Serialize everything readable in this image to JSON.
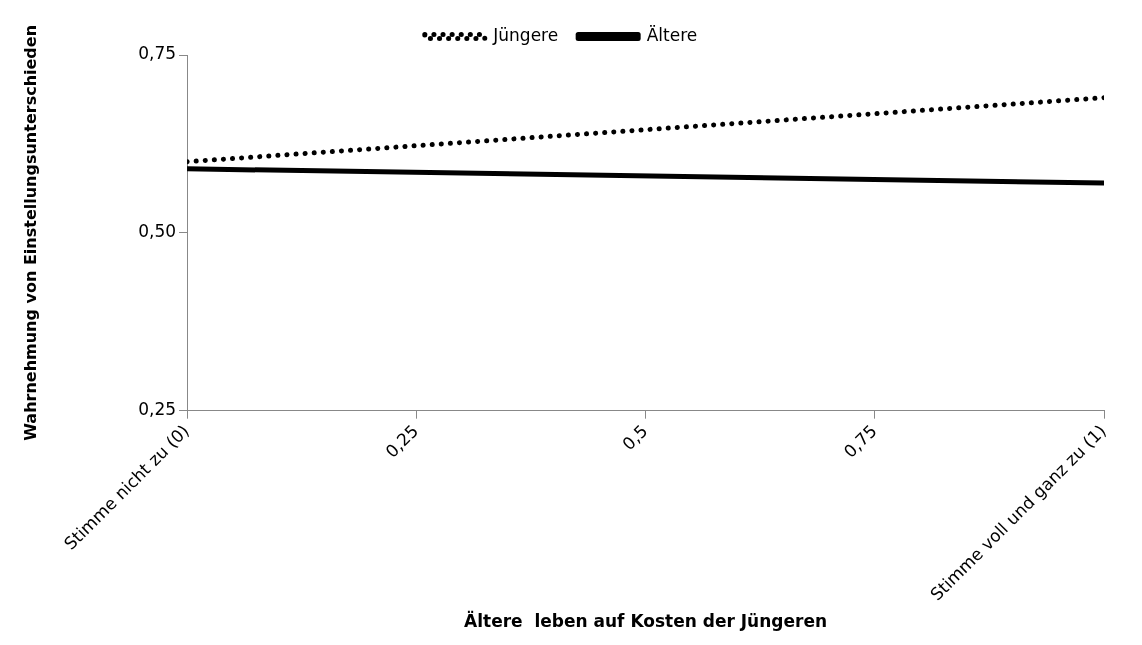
{
  "chart_data": {
    "type": "line",
    "xlabel": "Ältere  leben auf Kosten der Jüngeren",
    "ylabel": "Wahrnehmung von Einstellungsunterschieden",
    "x": [
      0,
      1
    ],
    "series": [
      {
        "name": "Jüngere",
        "color": "#000000",
        "values": [
          0.6,
          0.69
        ],
        "line_style": "dotted"
      },
      {
        "name": "Ältere",
        "color": "#000000",
        "values": [
          0.59,
          0.57
        ],
        "line_style": "solid"
      }
    ],
    "xlim": [
      0,
      1
    ],
    "xticks": [
      {
        "value": 0,
        "label": "Stimme nicht zu (0)"
      },
      {
        "value": 0.25,
        "label": "0,25"
      },
      {
        "value": 0.5,
        "label": "0,5"
      },
      {
        "value": 0.75,
        "label": "0,75"
      },
      {
        "value": 1,
        "label": "Stimme voll und ganz zu (1)"
      }
    ],
    "ylim": [
      0.25,
      0.75
    ],
    "yticks": [
      {
        "value": 0.25,
        "label": "0,25"
      },
      {
        "value": 0.5,
        "label": "0,50"
      },
      {
        "value": 0.75,
        "label": "0,75"
      }
    ],
    "grid": false,
    "legend": "top",
    "marker": "none"
  }
}
